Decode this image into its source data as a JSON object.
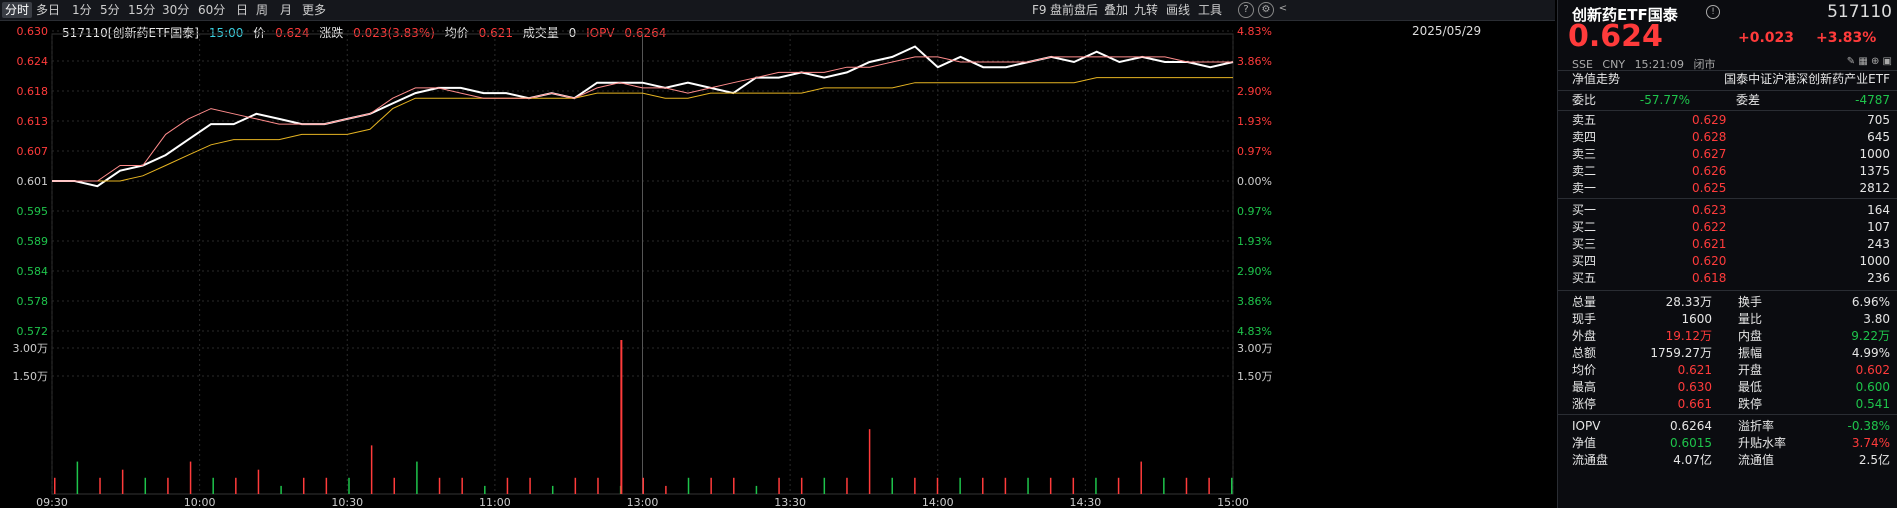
{
  "toolbar": {
    "tabs": [
      "分时",
      "多日",
      "1分",
      "5分",
      "15分",
      "30分",
      "60分",
      "日",
      "周",
      "月",
      "更多"
    ],
    "active_tab": "分时",
    "right_buttons": [
      "F9",
      "盘前盘后",
      "叠加",
      "九转",
      "画线",
      "工具"
    ]
  },
  "info": {
    "code_name": "517110[创新药ETF国泰]",
    "time": "15:00",
    "price_label": "价",
    "price": "0.624",
    "change_label": "涨跌",
    "change": "0.023(3.83%)",
    "avg_label": "均价",
    "avg": "0.621",
    "volume_label": "成交量",
    "volume": "0",
    "iopv_label": "IOPV",
    "iopv": "0.6264",
    "date": "2025/05/29"
  },
  "colors": {
    "up": "#ff3b3b",
    "down": "#1ec44b",
    "price_line": "#ffffff",
    "avg_line": "#e6b422",
    "iopv_line": "#ff8c8c"
  },
  "chart_data": {
    "type": "line",
    "x_ticks": [
      "09:30",
      "10:00",
      "10:30",
      "11:00",
      "13:00",
      "13:30",
      "14:00",
      "14:30",
      "15:00"
    ],
    "y_left": [
      "0.630",
      "0.624",
      "0.618",
      "0.613",
      "0.607",
      "0.601",
      "0.595",
      "0.589",
      "0.584",
      "0.578",
      "0.572"
    ],
    "y_right": [
      "4.83%",
      "3.86%",
      "2.90%",
      "1.93%",
      "0.97%",
      "0.00%",
      "0.97%",
      "1.93%",
      "2.90%",
      "3.86%",
      "4.83%"
    ],
    "vol_left": [
      "3.00万",
      "1.50万"
    ],
    "vol_right": [
      "3.00万",
      "1.50万"
    ],
    "ylim": [
      0.572,
      0.63
    ],
    "series": [
      {
        "name": "价",
        "values": [
          0.601,
          0.601,
          0.6,
          0.603,
          0.604,
          0.606,
          0.609,
          0.612,
          0.612,
          0.614,
          0.613,
          0.612,
          0.612,
          0.613,
          0.614,
          0.616,
          0.618,
          0.619,
          0.619,
          0.618,
          0.618,
          0.617,
          0.618,
          0.617,
          0.62,
          0.62,
          0.62,
          0.619,
          0.62,
          0.619,
          0.618,
          0.621,
          0.621,
          0.622,
          0.621,
          0.622,
          0.624,
          0.625,
          0.627,
          0.623,
          0.625,
          0.623,
          0.623,
          0.624,
          0.625,
          0.624,
          0.626,
          0.624,
          0.625,
          0.624,
          0.624,
          0.623,
          0.624
        ]
      },
      {
        "name": "均价",
        "values": [
          0.601,
          0.601,
          0.601,
          0.601,
          0.602,
          0.604,
          0.606,
          0.608,
          0.609,
          0.609,
          0.609,
          0.61,
          0.61,
          0.61,
          0.611,
          0.615,
          0.617,
          0.617,
          0.617,
          0.617,
          0.617,
          0.617,
          0.617,
          0.617,
          0.618,
          0.618,
          0.618,
          0.617,
          0.617,
          0.618,
          0.618,
          0.618,
          0.618,
          0.618,
          0.619,
          0.619,
          0.619,
          0.619,
          0.62,
          0.62,
          0.62,
          0.62,
          0.62,
          0.62,
          0.62,
          0.62,
          0.621,
          0.621,
          0.621,
          0.621,
          0.621,
          0.621,
          0.621
        ]
      },
      {
        "name": "IOPV",
        "values": [
          0.601,
          0.601,
          0.601,
          0.604,
          0.604,
          0.61,
          0.613,
          0.615,
          0.614,
          0.613,
          0.612,
          0.612,
          0.612,
          0.613,
          0.614,
          0.617,
          0.619,
          0.619,
          0.618,
          0.617,
          0.617,
          0.617,
          0.618,
          0.617,
          0.619,
          0.62,
          0.619,
          0.619,
          0.618,
          0.619,
          0.62,
          0.621,
          0.622,
          0.622,
          0.622,
          0.623,
          0.623,
          0.624,
          0.625,
          0.625,
          0.624,
          0.624,
          0.624,
          0.624,
          0.625,
          0.625,
          0.625,
          0.625,
          0.625,
          0.625,
          0.624,
          0.624,
          0.624
        ]
      }
    ],
    "volume": [
      0.1,
      0.2,
      0.1,
      0.15,
      0.1,
      0.1,
      0.2,
      0.1,
      0.1,
      0.15,
      0.05,
      0.1,
      0.1,
      0.1,
      0.3,
      0.1,
      0.2,
      0.1,
      0.1,
      0.05,
      0.1,
      0.1,
      0.05,
      0.1,
      0.1,
      0.05,
      0.1,
      0.05,
      0.1,
      0.1,
      0.1,
      0.05,
      0.1,
      0.1,
      0.1,
      0.1,
      0.4,
      0.1,
      0.1,
      0.1,
      0.1,
      0.1,
      0.1,
      0.1,
      0.1,
      0.1,
      0.1,
      0.1,
      0.2,
      0.1,
      0.1,
      0.1,
      0.1
    ],
    "volume_spike": 3.8
  },
  "panel": {
    "title": "创新药ETF国泰",
    "code": "517110",
    "price": "0.624",
    "change": "+0.023",
    "change_pct": "+3.83%",
    "meta": [
      "SSE",
      "CNY",
      "15:21:09",
      "闭市"
    ],
    "section_title": "净值走势",
    "index_name": "国泰中证沪港深创新药产业ETF",
    "wei": [
      {
        "label": "委比",
        "value": "-57.77%",
        "label2": "委差",
        "value2": "-4787"
      }
    ],
    "asks": [
      {
        "label": "卖五",
        "price": "0.629",
        "qty": "705"
      },
      {
        "label": "卖四",
        "price": "0.628",
        "qty": "645"
      },
      {
        "label": "卖三",
        "price": "0.627",
        "qty": "1000"
      },
      {
        "label": "卖二",
        "price": "0.626",
        "qty": "1375"
      },
      {
        "label": "卖一",
        "price": "0.625",
        "qty": "2812"
      }
    ],
    "bids": [
      {
        "label": "买一",
        "price": "0.623",
        "qty": "164"
      },
      {
        "label": "买二",
        "price": "0.622",
        "qty": "107"
      },
      {
        "label": "买三",
        "price": "0.621",
        "qty": "243"
      },
      {
        "label": "买四",
        "price": "0.620",
        "qty": "1000"
      },
      {
        "label": "买五",
        "price": "0.618",
        "qty": "236"
      }
    ],
    "stats": [
      {
        "l1": "总量",
        "v1": "28.33万",
        "c1": "white",
        "l2": "换手",
        "v2": "6.96%",
        "c2": "white"
      },
      {
        "l1": "现手",
        "v1": "1600",
        "c1": "white",
        "l2": "量比",
        "v2": "3.80",
        "c2": "white"
      },
      {
        "l1": "外盘",
        "v1": "19.12万",
        "c1": "red",
        "l2": "内盘",
        "v2": "9.22万",
        "c2": "green"
      },
      {
        "l1": "总额",
        "v1": "1759.27万",
        "c1": "white",
        "l2": "振幅",
        "v2": "4.99%",
        "c2": "white"
      },
      {
        "l1": "均价",
        "v1": "0.621",
        "c1": "red",
        "l2": "开盘",
        "v2": "0.602",
        "c2": "red"
      },
      {
        "l1": "最高",
        "v1": "0.630",
        "c1": "red",
        "l2": "最低",
        "v2": "0.600",
        "c2": "green"
      },
      {
        "l1": "涨停",
        "v1": "0.661",
        "c1": "red",
        "l2": "跌停",
        "v2": "0.541",
        "c2": "green"
      }
    ],
    "stats2": [
      {
        "l1": "IOPV",
        "v1": "0.6264",
        "c1": "white",
        "l2": "溢折率",
        "v2": "-0.38%",
        "c2": "green"
      },
      {
        "l1": "净值",
        "v1": "0.6015",
        "c1": "green",
        "l2": "升贴水率",
        "v2": "3.74%",
        "c2": "red"
      },
      {
        "l1": "流通盘",
        "v1": "4.07亿",
        "c1": "white",
        "l2": "流通值",
        "v2": "2.5亿",
        "c2": "white"
      }
    ]
  }
}
